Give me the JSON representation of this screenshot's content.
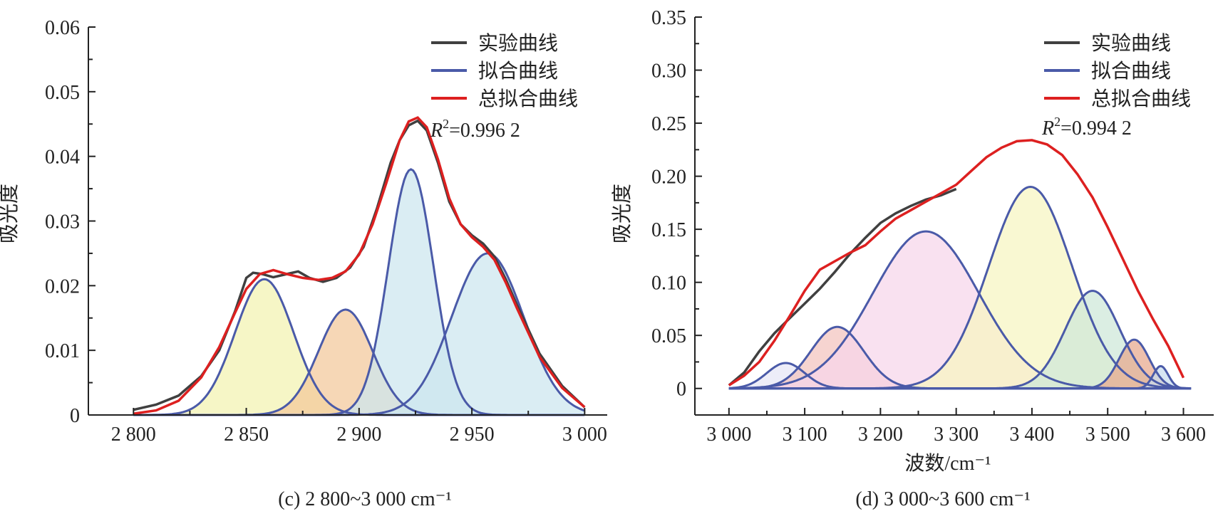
{
  "panels": [
    {
      "caption": "(c) 2 800~3 000 cm⁻¹",
      "ylabel": "吸光度",
      "xlabel": "",
      "r2_label": "R",
      "r2_sup": "2",
      "r2_value": "=0.996 2",
      "legend": [
        "实验曲线",
        "拟合曲线",
        "总拟合曲线"
      ]
    },
    {
      "caption": "(d) 3 000~3 600 cm⁻¹",
      "ylabel": "吸光度",
      "xlabel": "波数/cm⁻¹",
      "r2_label": "R",
      "r2_sup": "2",
      "r2_value": "=0.994 2",
      "legend": [
        "实验曲线",
        "拟合曲线",
        "总拟合曲线"
      ]
    }
  ],
  "colors": {
    "experimental": "#404040",
    "fit": "#4a5aa8",
    "total": "#dd2020"
  },
  "chart_data": [
    {
      "type": "area",
      "xlim": [
        2780,
        3010
      ],
      "ylim": [
        0,
        0.06
      ],
      "xticks": [
        2800,
        2850,
        2900,
        2950,
        3000
      ],
      "xtick_labels": [
        "2 800",
        "2 850",
        "2 900",
        "2 950",
        "3 000"
      ],
      "yticks": [
        0,
        0.01,
        0.02,
        0.03,
        0.04,
        0.05,
        0.06
      ],
      "ytick_labels": [
        "0",
        "0.01",
        "0.02",
        "0.03",
        "0.04",
        "0.05",
        "0.06"
      ],
      "x_range": [
        2800,
        3000
      ],
      "fitted_peaks": [
        {
          "center": 2858,
          "height": 0.021,
          "sigma": 13,
          "fill": "#f3f3b0"
        },
        {
          "center": 2894,
          "height": 0.0163,
          "sigma": 12,
          "fill": "#f2c89a"
        },
        {
          "center": 2923,
          "height": 0.038,
          "sigma": 10,
          "fill": "#cce6ef"
        },
        {
          "center": 2957,
          "height": 0.025,
          "sigma": 16,
          "fill": "#cce6ef"
        }
      ],
      "experimental": [
        [
          2800,
          0.0008
        ],
        [
          2810,
          0.0016
        ],
        [
          2820,
          0.003
        ],
        [
          2830,
          0.006
        ],
        [
          2838,
          0.01
        ],
        [
          2845,
          0.016
        ],
        [
          2850,
          0.0212
        ],
        [
          2853,
          0.022
        ],
        [
          2857,
          0.0218
        ],
        [
          2862,
          0.0213
        ],
        [
          2868,
          0.0218
        ],
        [
          2873,
          0.0222
        ],
        [
          2878,
          0.0212
        ],
        [
          2884,
          0.0206
        ],
        [
          2890,
          0.0212
        ],
        [
          2896,
          0.0228
        ],
        [
          2902,
          0.026
        ],
        [
          2908,
          0.032
        ],
        [
          2914,
          0.039
        ],
        [
          2918,
          0.0425
        ],
        [
          2922,
          0.0448
        ],
        [
          2926,
          0.0455
        ],
        [
          2930,
          0.044
        ],
        [
          2935,
          0.039
        ],
        [
          2940,
          0.033
        ],
        [
          2945,
          0.0295
        ],
        [
          2950,
          0.0278
        ],
        [
          2955,
          0.0265
        ],
        [
          2960,
          0.0245
        ],
        [
          2965,
          0.021
        ],
        [
          2970,
          0.017
        ],
        [
          2980,
          0.0095
        ],
        [
          2990,
          0.0045
        ],
        [
          3000,
          0.0012
        ]
      ],
      "total_fit": [
        [
          2800,
          0.0002
        ],
        [
          2810,
          0.0007
        ],
        [
          2820,
          0.0022
        ],
        [
          2830,
          0.0058
        ],
        [
          2838,
          0.0105
        ],
        [
          2845,
          0.0158
        ],
        [
          2850,
          0.0195
        ],
        [
          2856,
          0.0218
        ],
        [
          2862,
          0.0224
        ],
        [
          2868,
          0.0218
        ],
        [
          2875,
          0.0212
        ],
        [
          2882,
          0.0209
        ],
        [
          2888,
          0.0212
        ],
        [
          2894,
          0.0222
        ],
        [
          2900,
          0.0248
        ],
        [
          2906,
          0.0295
        ],
        [
          2912,
          0.0358
        ],
        [
          2918,
          0.0425
        ],
        [
          2922,
          0.0454
        ],
        [
          2926,
          0.046
        ],
        [
          2930,
          0.0445
        ],
        [
          2935,
          0.0395
        ],
        [
          2940,
          0.0335
        ],
        [
          2945,
          0.0295
        ],
        [
          2950,
          0.0275
        ],
        [
          2955,
          0.026
        ],
        [
          2960,
          0.024
        ],
        [
          2965,
          0.0205
        ],
        [
          2970,
          0.0165
        ],
        [
          2980,
          0.009
        ],
        [
          2990,
          0.0042
        ],
        [
          3000,
          0.0012
        ]
      ]
    },
    {
      "type": "area",
      "xlim": [
        2955,
        3640
      ],
      "ylim": [
        -0.025,
        0.35
      ],
      "xticks": [
        3000,
        3100,
        3200,
        3300,
        3400,
        3500,
        3600
      ],
      "xtick_labels": [
        "3 000",
        "3 100",
        "3 200",
        "3 300",
        "3 400",
        "3 500",
        "3 600"
      ],
      "yticks": [
        0,
        0.05,
        0.1,
        0.15,
        0.2,
        0.25,
        0.3,
        0.35
      ],
      "ytick_labels": [
        "0",
        "0.05",
        "0.10",
        "0.15",
        "0.20",
        "0.25",
        "0.30",
        "0.35"
      ],
      "x_range": [
        3000,
        3610
      ],
      "fitted_peaks": [
        {
          "center": 3075,
          "height": 0.024,
          "sigma": 25,
          "fill": "#e6e6f5"
        },
        {
          "center": 3143,
          "height": 0.058,
          "sigma": 35,
          "fill": "#f2c3be"
        },
        {
          "center": 3260,
          "height": 0.148,
          "sigma": 70,
          "fill": "#f7d5ea"
        },
        {
          "center": 3398,
          "height": 0.19,
          "sigma": 55,
          "fill": "#f7f5c0"
        },
        {
          "center": 3480,
          "height": 0.092,
          "sigma": 36,
          "fill": "#cde8d8"
        },
        {
          "center": 3535,
          "height": 0.046,
          "sigma": 20,
          "fill": "#e8a88c"
        },
        {
          "center": 3570,
          "height": 0.021,
          "sigma": 10,
          "fill": "#c8dcee"
        }
      ],
      "experimental": [
        [
          3000,
          0.003
        ],
        [
          3020,
          0.015
        ],
        [
          3040,
          0.035
        ],
        [
          3060,
          0.052
        ],
        [
          3080,
          0.066
        ],
        [
          3100,
          0.08
        ],
        [
          3120,
          0.094
        ],
        [
          3140,
          0.11
        ],
        [
          3160,
          0.127
        ],
        [
          3180,
          0.142
        ],
        [
          3200,
          0.156
        ],
        [
          3220,
          0.165
        ],
        [
          3240,
          0.172
        ],
        [
          3260,
          0.178
        ],
        [
          3280,
          0.182
        ],
        [
          3300,
          0.188
        ]
      ],
      "total_fit": [
        [
          3000,
          0.003
        ],
        [
          3020,
          0.012
        ],
        [
          3040,
          0.025
        ],
        [
          3060,
          0.045
        ],
        [
          3080,
          0.068
        ],
        [
          3100,
          0.092
        ],
        [
          3120,
          0.112
        ],
        [
          3140,
          0.12
        ],
        [
          3160,
          0.128
        ],
        [
          3180,
          0.135
        ],
        [
          3200,
          0.148
        ],
        [
          3220,
          0.16
        ],
        [
          3240,
          0.168
        ],
        [
          3260,
          0.176
        ],
        [
          3280,
          0.184
        ],
        [
          3300,
          0.192
        ],
        [
          3320,
          0.205
        ],
        [
          3340,
          0.218
        ],
        [
          3360,
          0.227
        ],
        [
          3380,
          0.233
        ],
        [
          3400,
          0.234
        ],
        [
          3420,
          0.23
        ],
        [
          3440,
          0.22
        ],
        [
          3460,
          0.202
        ],
        [
          3480,
          0.18
        ],
        [
          3500,
          0.152
        ],
        [
          3520,
          0.122
        ],
        [
          3540,
          0.092
        ],
        [
          3560,
          0.065
        ],
        [
          3580,
          0.04
        ],
        [
          3600,
          0.01
        ]
      ]
    }
  ]
}
